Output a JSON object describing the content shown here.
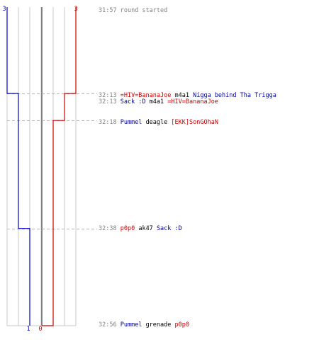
{
  "chart_data": {
    "type": "line",
    "title": "",
    "xlabel": "",
    "ylabel": "",
    "ylim": [
      0,
      3
    ],
    "x": [
      "31:57",
      "32:13",
      "32:13",
      "32:18",
      "32:38",
      "32:56"
    ],
    "series": [
      {
        "values": [
          3,
          2,
          2,
          2,
          1,
          1
        ],
        "color": "#0000cc"
      },
      {
        "values": [
          3,
          3,
          2,
          1,
          1,
          0
        ],
        "color": "#cc0000"
      }
    ],
    "start_labels": [
      "3",
      "3"
    ],
    "end_labels": [
      "1",
      "0"
    ]
  },
  "events": [
    {
      "time": "31:57",
      "type": "info",
      "text": "round started"
    },
    {
      "time": "32:13",
      "type": "kill",
      "killer": "=HIV=BananaJoe",
      "killer_team": "red",
      "weapon": "m4a1",
      "victim": "Nigga behind Tha Trigga",
      "victim_team": "blue"
    },
    {
      "time": "32:13",
      "type": "kill",
      "killer": "Sack :D",
      "killer_team": "blue",
      "weapon": "m4a1",
      "victim": "=HIV=BananaJoe",
      "victim_team": "red"
    },
    {
      "time": "32:18",
      "type": "kill",
      "killer": "Pummel",
      "killer_team": "blue",
      "weapon": "deagle",
      "victim": "[EKK]SonGOhaN",
      "victim_team": "red"
    },
    {
      "time": "32:38",
      "type": "kill",
      "killer": "p0p0",
      "killer_team": "red",
      "weapon": "ak47",
      "victim": "Sack :D",
      "victim_team": "blue"
    },
    {
      "time": "32:56",
      "type": "kill",
      "killer": "Pummel",
      "killer_team": "blue",
      "weapon": "grenade",
      "victim": "p0p0",
      "victim_team": "red"
    }
  ]
}
